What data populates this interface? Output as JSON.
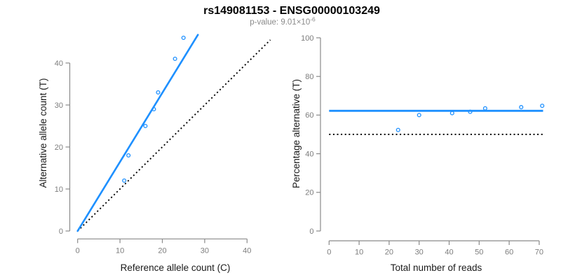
{
  "title": "rs149081153 - ENSG00000103249",
  "subtitle": {
    "text": "p-value: 9.01×10",
    "exponent": "-6"
  },
  "colors": {
    "accent_blue": "#1e90ff",
    "dotted_black": "#000000",
    "axis_line_gray": "#8a8a8a",
    "tick_label_gray": "#7d7d7d",
    "axis_title_black": "#1a1a1a",
    "title_black": "#000000",
    "subtitle_gray": "#8a8a8a"
  },
  "chart_data": [
    {
      "type": "scatter",
      "panel": "left",
      "xlabel": "Reference allele count (C)",
      "ylabel": "Alternative allele count (T)",
      "xlim": [
        0,
        40
      ],
      "ylim": [
        0,
        40
      ],
      "xticks": [
        0,
        10,
        20,
        30,
        40
      ],
      "yticks": [
        0,
        10,
        20,
        30,
        40
      ],
      "grid": false,
      "points": [
        [
          11,
          12
        ],
        [
          12,
          18
        ],
        [
          16,
          25
        ],
        [
          18,
          29
        ],
        [
          19,
          33
        ],
        [
          23,
          41
        ],
        [
          25,
          46
        ]
      ],
      "fit_line": {
        "slope": 1.645,
        "intercept": 0,
        "x_start": 0,
        "x_end": 28.4,
        "style": "solid",
        "meaning": "fitted allelic ratio 62.2%"
      },
      "identity_line": {
        "slope": 1,
        "intercept": 0,
        "x_start": 0,
        "x_end": 45.5,
        "style": "dotted",
        "meaning": "50:50 expectation"
      }
    },
    {
      "type": "scatter",
      "panel": "right",
      "xlabel": "Total number of reads",
      "ylabel": "Percentage alternative (T)",
      "xlim": [
        0,
        70
      ],
      "ylim": [
        0,
        100
      ],
      "xticks": [
        0,
        10,
        20,
        30,
        40,
        50,
        60,
        70
      ],
      "yticks": [
        0,
        20,
        40,
        60,
        80,
        100
      ],
      "grid": false,
      "points": [
        [
          23,
          52.3
        ],
        [
          30,
          60
        ],
        [
          41,
          61
        ],
        [
          47,
          61.7
        ],
        [
          52,
          63.5
        ],
        [
          64,
          64.1
        ],
        [
          71,
          64.8
        ]
      ],
      "mean_line": {
        "y": 62.2,
        "x_start": 0,
        "x_end": 71.3,
        "style": "solid",
        "meaning": "mean percentage alternative"
      },
      "null_line": {
        "y": 50,
        "x_start": 0,
        "x_end": 71.3,
        "style": "dotted",
        "meaning": "50% expectation"
      }
    }
  ]
}
